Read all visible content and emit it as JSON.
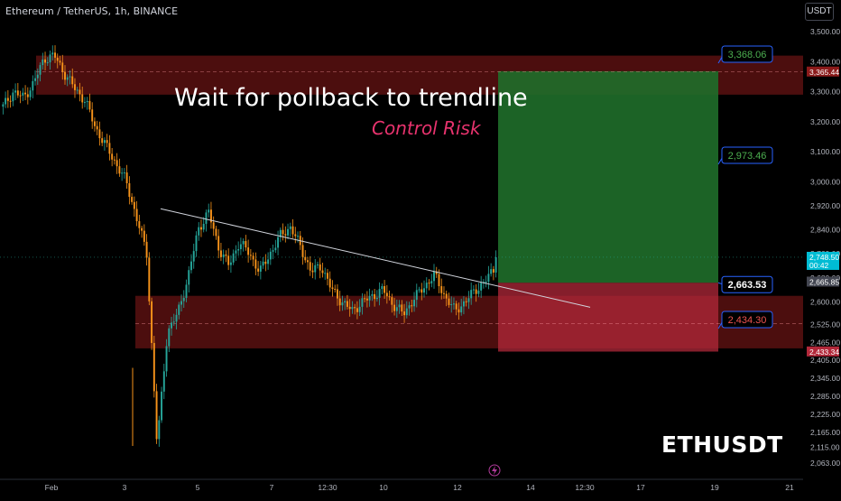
{
  "header": {
    "symbol_title": "Ethereum / TetherUS, 1h, BINANCE",
    "currency_button": "USDT"
  },
  "annotations": {
    "title": "Wait for pollback to trendline",
    "subtitle": "Control Risk",
    "ticker": "ETHUSDT"
  },
  "colors": {
    "background": "#000000",
    "candle_up": "#26a69a",
    "candle_down": "#f7931a",
    "zone_red": "#8b1a1a",
    "target_green": "#1f6e2a",
    "stop_red": "#b2283a",
    "label_border": "#2962ff",
    "text_green": "#4caf50",
    "text_red": "#ef5350",
    "annotation_pink": "#e8336e"
  },
  "chart_data": {
    "type": "candlestick",
    "interval": "1h",
    "y_axis": {
      "ylim": [
        2030,
        3580
      ],
      "ticks": [
        3500,
        3400,
        3300,
        3200,
        3100,
        3000,
        2920,
        2840,
        2760,
        2680,
        2600,
        2525,
        2465,
        2405,
        2345,
        2285,
        2225,
        2165,
        2115,
        2063
      ],
      "tick_labels": [
        "3,500.00",
        "3,400.00",
        "3,300.00",
        "3,200.00",
        "3,100.00",
        "3,000.00",
        "2,920.00",
        "2,840.00",
        "2,760.00",
        "2,680.00",
        "2,600.00",
        "2,525.00",
        "2,465.00",
        "2,405.00",
        "2,345.00",
        "2,285.00",
        "2,225.00",
        "2,165.00",
        "2,115.00",
        "2,063.00"
      ],
      "price_tags": [
        {
          "value": 3365.44,
          "label": "3,365.44",
          "color": "#8b1a1a"
        },
        {
          "value": 2748.5,
          "label": "2,748.50",
          "sublabel": "00:42",
          "color": "#00bcd4"
        },
        {
          "value": 2665.85,
          "label": "2,665.85",
          "color": "#434651"
        },
        {
          "value": 2433.34,
          "label": "2,433.34",
          "color": "#b2283a"
        }
      ]
    },
    "x_axis": {
      "ticks": [
        "Feb",
        "3",
        "5",
        "7",
        "12:30",
        "10",
        "12",
        "14",
        "12:30",
        "17",
        "19",
        "21"
      ]
    },
    "position": {
      "entry": 2663.53,
      "entry_label": "2,663.53",
      "target": 3368.06,
      "target_label": "3,368.06",
      "mid": 2973.46,
      "mid_label": "2,973.46",
      "stop": 2434.3,
      "stop_label": "2,434.30"
    },
    "zones": [
      {
        "name": "resistance",
        "from": 3290,
        "to": 3420
      },
      {
        "name": "support",
        "from": 2445,
        "to": 2620
      }
    ],
    "trendline": {
      "from": {
        "x": "4",
        "y": 2910
      },
      "to": {
        "x": "14",
        "y": 2582
      }
    },
    "candle_path": [
      [
        3250,
        8
      ],
      [
        3300,
        8
      ],
      [
        3280,
        6
      ],
      [
        3330,
        10
      ],
      [
        3410,
        6
      ],
      [
        3420,
        3
      ],
      [
        3360,
        5
      ],
      [
        3310,
        8
      ],
      [
        3270,
        6
      ],
      [
        3180,
        8
      ],
      [
        3120,
        8
      ],
      [
        3060,
        6
      ],
      [
        3000,
        6
      ],
      [
        2880,
        3
      ],
      [
        2760,
        2
      ],
      [
        2120,
        1
      ],
      [
        2500,
        2
      ],
      [
        2560,
        4
      ],
      [
        2680,
        4
      ],
      [
        2840,
        4
      ],
      [
        2900,
        3
      ],
      [
        2780,
        4
      ],
      [
        2720,
        4
      ],
      [
        2800,
        6
      ],
      [
        2760,
        4
      ],
      [
        2700,
        4
      ],
      [
        2760,
        6
      ],
      [
        2820,
        6
      ],
      [
        2850,
        5
      ],
      [
        2780,
        4
      ],
      [
        2700,
        5
      ],
      [
        2720,
        6
      ],
      [
        2640,
        5
      ],
      [
        2600,
        6
      ],
      [
        2570,
        5
      ],
      [
        2600,
        6
      ],
      [
        2620,
        6
      ],
      [
        2640,
        5
      ],
      [
        2590,
        5
      ],
      [
        2560,
        3
      ],
      [
        2610,
        6
      ],
      [
        2650,
        8
      ],
      [
        2690,
        6
      ],
      [
        2620,
        5
      ],
      [
        2570,
        5
      ],
      [
        2600,
        4
      ],
      [
        2640,
        5
      ],
      [
        2670,
        4
      ],
      [
        2720,
        3
      ]
    ]
  }
}
